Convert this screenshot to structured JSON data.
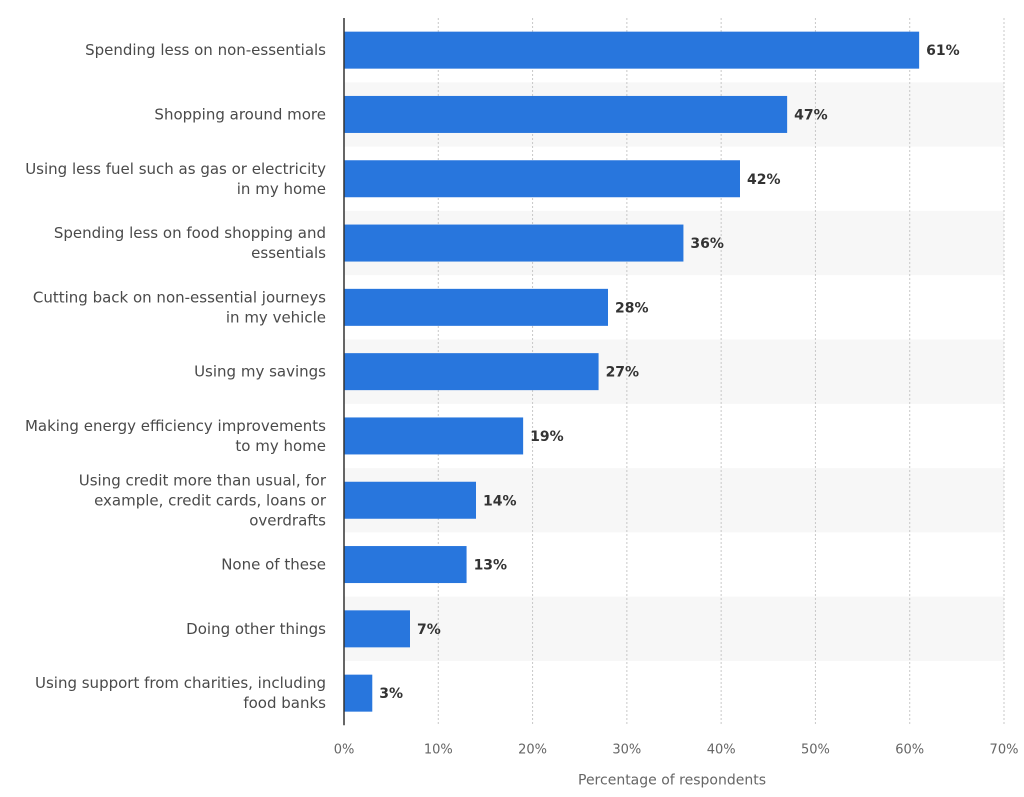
{
  "chart_data": {
    "type": "bar",
    "orientation": "horizontal",
    "categories": [
      [
        "Spending less on non-essentials"
      ],
      [
        "Shopping around more"
      ],
      [
        "Using less fuel such as gas or electricity",
        "in my home"
      ],
      [
        "Spending less on food shopping and",
        "essentials"
      ],
      [
        "Cutting back on non-essential journeys",
        "in my vehicle"
      ],
      [
        "Using my savings"
      ],
      [
        "Making energy efficiency improvements",
        "to my home"
      ],
      [
        "Using credit more than usual, for",
        "example, credit cards, loans or",
        "overdrafts"
      ],
      [
        "None of these"
      ],
      [
        "Doing other things"
      ],
      [
        "Using support from charities, including",
        "food banks"
      ]
    ],
    "values": [
      61,
      47,
      42,
      36,
      28,
      27,
      19,
      14,
      13,
      7,
      3
    ],
    "value_labels": [
      "61%",
      "47%",
      "42%",
      "36%",
      "28%",
      "27%",
      "19%",
      "14%",
      "13%",
      "7%",
      "3%"
    ],
    "xlabel": "Percentage of respondents",
    "xlim": [
      0,
      70
    ],
    "ticks": [
      0,
      10,
      20,
      30,
      40,
      50,
      60,
      70
    ],
    "tick_labels": [
      "0%",
      "10%",
      "20%",
      "30%",
      "40%",
      "50%",
      "60%",
      "70%"
    ],
    "grid": true,
    "bar_color": "#2876dd",
    "band_color": "#f7f7f7",
    "grid_color": "#c8c8c8"
  }
}
